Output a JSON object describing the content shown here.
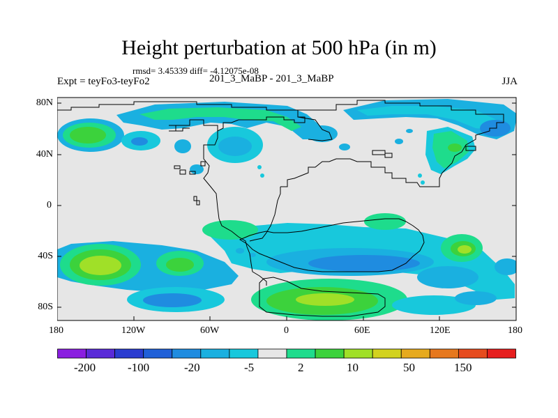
{
  "figure": {
    "title": "Height perturbation at 500 hPa (in m)",
    "stats": "rmsd= 3.45339 diff= -4.12075e-08",
    "left_label": "Expt = teyFo3-teyFo2",
    "center_label": "201_3_MaBP - 201_3_MaBP",
    "right_label": "JJA"
  },
  "map": {
    "background_color": "#e6e6e6",
    "y_tick_labels": [
      "80N",
      "40N",
      "0",
      "40S",
      "80S"
    ],
    "x_tick_labels": [
      "180",
      "120W",
      "60W",
      "0",
      "60E",
      "120E",
      "180"
    ]
  },
  "colorbar": {
    "colors": [
      "#8a1ee0",
      "#5a2ad8",
      "#2a3cd0",
      "#2060d8",
      "#1f8ce0",
      "#1ab0e0",
      "#18c8dc",
      "#e6e6e6",
      "#1edc8c",
      "#3cd23c",
      "#a0e028",
      "#d2d21e",
      "#e6aa1e",
      "#e6781e",
      "#e64b1e",
      "#e61e1e"
    ],
    "labels": [
      "-200",
      "-100",
      "-20",
      "-5",
      "2",
      "10",
      "50",
      "150"
    ]
  }
}
